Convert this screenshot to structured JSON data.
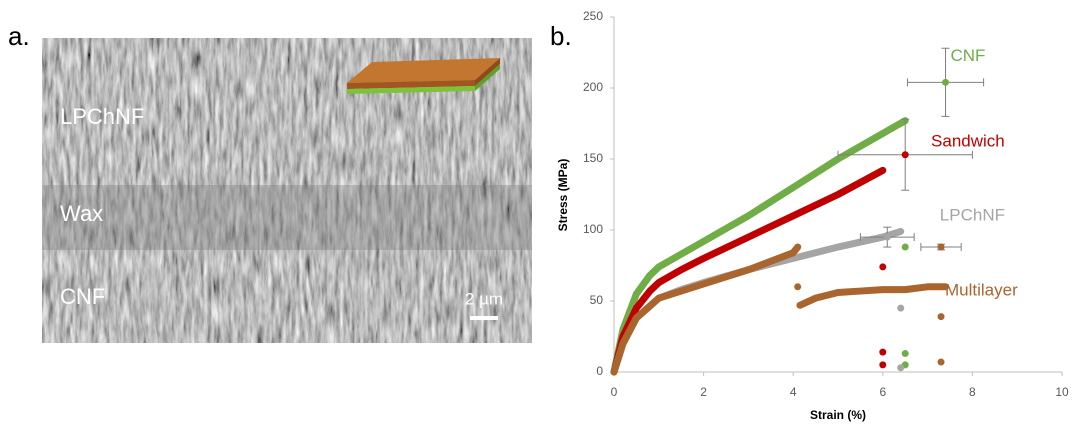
{
  "panel_a": {
    "label": "a.",
    "annotations": [
      "LPChNF",
      "Wax",
      "CNF"
    ],
    "scale_bar": "2 µm"
  },
  "chart_data": {
    "type": "line",
    "panel_label": "b.",
    "x_label": "Strain (%)",
    "y_label": "Stress (MPa)",
    "xlim": [
      0,
      10
    ],
    "xticks": [
      0,
      2,
      4,
      6,
      8,
      10
    ],
    "ylim": [
      0,
      250
    ],
    "yticks": [
      0,
      50,
      100,
      150,
      200,
      250
    ],
    "grid": false,
    "series": [
      {
        "name": "CNF",
        "color": "#70ad47",
        "x": [
          0,
          0.2,
          0.5,
          0.8,
          1,
          1.5,
          2,
          3,
          4,
          5,
          6,
          6.5,
          null,
          6.5,
          null,
          6.5,
          null,
          6.5
        ],
        "values": [
          0,
          30,
          55,
          68,
          74,
          83,
          92,
          110,
          130,
          150,
          168,
          177,
          null,
          88,
          null,
          13,
          null,
          5
        ],
        "mean": {
          "x": 7.4,
          "y": 204,
          "xerr": 0.85,
          "yerr": 24
        }
      },
      {
        "name": "Sandwich",
        "color": "#c00000",
        "x": [
          0,
          0.2,
          0.5,
          0.8,
          1,
          1.5,
          2,
          3,
          4,
          5,
          6,
          null,
          6,
          null,
          6,
          null,
          6
        ],
        "values": [
          0,
          25,
          45,
          57,
          63,
          72,
          80,
          95,
          110,
          125,
          142,
          null,
          74,
          null,
          14,
          null,
          5
        ],
        "mean": {
          "x": 6.5,
          "y": 153,
          "xerr": 1.5,
          "yerr": 25
        }
      },
      {
        "name": "LPChNF",
        "color": "#a5a5a5",
        "x": [
          0,
          0.2,
          0.5,
          1,
          1.5,
          2,
          3,
          4,
          5,
          6,
          6.4,
          null,
          6.4,
          null,
          6.4
        ],
        "values": [
          0,
          20,
          38,
          52,
          58,
          63,
          72,
          80,
          88,
          95,
          99,
          null,
          45,
          null,
          3
        ],
        "mean": {
          "x": 6.1,
          "y": 95,
          "xerr": 0.6,
          "yerr": 7
        }
      },
      {
        "name": "Multilayer",
        "color": "#a9652d",
        "x": [
          0,
          0.2,
          0.5,
          1,
          1.5,
          2,
          3,
          4,
          4.1,
          null,
          4.1,
          null,
          4.15,
          4.5,
          5,
          5.5,
          6,
          6.5,
          7,
          7.4,
          null,
          7.3,
          null,
          7.3
        ],
        "values": [
          0,
          20,
          38,
          52,
          57,
          62,
          72,
          84,
          88,
          null,
          60,
          null,
          47,
          52,
          56,
          57,
          58,
          58,
          60,
          60,
          null,
          39,
          null,
          7
        ],
        "mean": {
          "x": 7.3,
          "y": 88,
          "xerr": 0.45,
          "yerr": 2
        }
      }
    ]
  }
}
